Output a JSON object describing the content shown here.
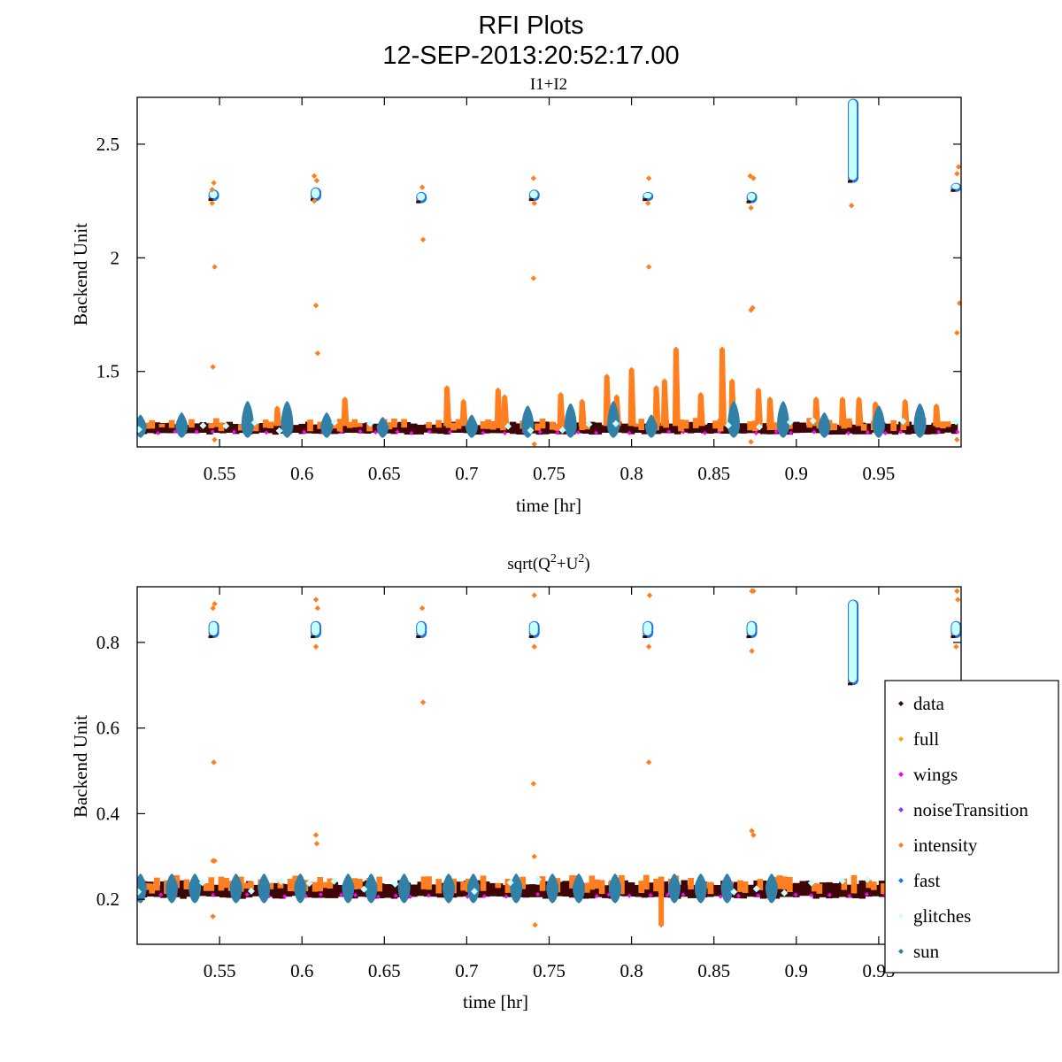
{
  "figure": {
    "title": "RFI Plots",
    "timestamp": "12-SEP-2013:20:52:17.00"
  },
  "legend": {
    "placement": "lower-right",
    "entries": [
      {
        "name": "data",
        "color": "#3d0505"
      },
      {
        "name": "full",
        "color": "#ffa31a"
      },
      {
        "name": "wings",
        "color": "#ff00ff"
      },
      {
        "name": "noiseTransition",
        "color": "#7f3fdf"
      },
      {
        "name": "intensity",
        "color": "#ff7f20"
      },
      {
        "name": "fast",
        "color": "#1f78d8"
      },
      {
        "name": "glitches",
        "color": "#c8ffff"
      },
      {
        "name": "sun",
        "color": "#3180a8"
      }
    ]
  },
  "chart_data": [
    {
      "type": "scatter",
      "title": "I1+I2",
      "xlabel": "time [hr]",
      "ylabel": "Backend Unit",
      "xlim": [
        0.5,
        1.0
      ],
      "ylim": [
        1.168,
        2.706
      ],
      "xticks": [
        0.55,
        0.6,
        0.65,
        0.7,
        0.75,
        0.8,
        0.85,
        0.9,
        0.95
      ],
      "xtick_labels": [
        "0.55",
        "0.6",
        "0.65",
        "0.7",
        "0.75",
        "0.8",
        "0.85",
        "0.9",
        "0.95"
      ],
      "yticks": [
        1.5,
        2,
        2.5
      ],
      "ytick_labels": [
        "1.5",
        "2",
        "2.5"
      ],
      "grid": false,
      "baseline": {
        "low": 1.22,
        "high": 1.3
      },
      "calibration_clusters": [
        {
          "t": 0.5465,
          "y_low": 2.25,
          "y_high": 2.3
        },
        {
          "t": 0.6085,
          "y_low": 2.25,
          "y_high": 2.31
        },
        {
          "t": 0.6725,
          "y_low": 2.24,
          "y_high": 2.29
        },
        {
          "t": 0.741,
          "y_low": 2.25,
          "y_high": 2.3
        },
        {
          "t": 0.81,
          "y_low": 2.25,
          "y_high": 2.29
        },
        {
          "t": 0.873,
          "y_low": 2.24,
          "y_high": 2.29
        },
        {
          "t": 0.9345,
          "y_low": 2.33,
          "y_high": 2.7
        },
        {
          "t": 0.997,
          "y_low": 2.29,
          "y_high": 2.33
        }
      ],
      "intensity_outliers": [
        {
          "t": 0.5465,
          "y": 2.33
        },
        {
          "t": 0.5455,
          "y": 2.3
        },
        {
          "t": 0.5455,
          "y": 2.24
        },
        {
          "t": 0.547,
          "y": 1.96
        },
        {
          "t": 0.546,
          "y": 1.52
        },
        {
          "t": 0.547,
          "y": 1.2
        },
        {
          "t": 0.6075,
          "y": 2.36
        },
        {
          "t": 0.609,
          "y": 2.34
        },
        {
          "t": 0.6075,
          "y": 2.25
        },
        {
          "t": 0.6085,
          "y": 1.79
        },
        {
          "t": 0.6095,
          "y": 1.58
        },
        {
          "t": 0.673,
          "y": 2.31
        },
        {
          "t": 0.6735,
          "y": 2.08
        },
        {
          "t": 0.7405,
          "y": 2.35
        },
        {
          "t": 0.741,
          "y": 2.24
        },
        {
          "t": 0.7405,
          "y": 1.91
        },
        {
          "t": 0.741,
          "y": 1.18
        },
        {
          "t": 0.8105,
          "y": 2.35
        },
        {
          "t": 0.81,
          "y": 2.24
        },
        {
          "t": 0.8105,
          "y": 1.96
        },
        {
          "t": 0.872,
          "y": 2.36
        },
        {
          "t": 0.874,
          "y": 2.35
        },
        {
          "t": 0.8725,
          "y": 2.22
        },
        {
          "t": 0.8735,
          "y": 1.78
        },
        {
          "t": 0.8725,
          "y": 1.77
        },
        {
          "t": 0.8725,
          "y": 1.19
        },
        {
          "t": 0.9335,
          "y": 2.23
        },
        {
          "t": 0.9975,
          "y": 2.37
        },
        {
          "t": 0.9985,
          "y": 2.4
        },
        {
          "t": 0.999,
          "y": 1.8
        },
        {
          "t": 0.9975,
          "y": 1.67
        },
        {
          "t": 0.9975,
          "y": 1.2
        }
      ],
      "intensity_spikes": [
        {
          "t": 0.585,
          "y": 1.35
        },
        {
          "t": 0.626,
          "y": 1.39
        },
        {
          "t": 0.688,
          "y": 1.44
        },
        {
          "t": 0.698,
          "y": 1.38
        },
        {
          "t": 0.719,
          "y": 1.43
        },
        {
          "t": 0.723,
          "y": 1.4
        },
        {
          "t": 0.757,
          "y": 1.41
        },
        {
          "t": 0.77,
          "y": 1.38
        },
        {
          "t": 0.785,
          "y": 1.49
        },
        {
          "t": 0.791,
          "y": 1.4
        },
        {
          "t": 0.8,
          "y": 1.52
        },
        {
          "t": 0.815,
          "y": 1.44
        },
        {
          "t": 0.82,
          "y": 1.47
        },
        {
          "t": 0.827,
          "y": 1.61
        },
        {
          "t": 0.842,
          "y": 1.41
        },
        {
          "t": 0.855,
          "y": 1.61
        },
        {
          "t": 0.861,
          "y": 1.47
        },
        {
          "t": 0.877,
          "y": 1.43
        },
        {
          "t": 0.884,
          "y": 1.39
        },
        {
          "t": 0.912,
          "y": 1.39
        },
        {
          "t": 0.928,
          "y": 1.39
        },
        {
          "t": 0.938,
          "y": 1.39
        },
        {
          "t": 0.948,
          "y": 1.37
        },
        {
          "t": 0.966,
          "y": 1.38
        },
        {
          "t": 0.985,
          "y": 1.36
        }
      ],
      "sun_bumps": [
        {
          "t": 0.502,
          "y": 1.31
        },
        {
          "t": 0.527,
          "y": 1.32
        },
        {
          "t": 0.567,
          "y": 1.37
        },
        {
          "t": 0.591,
          "y": 1.37
        },
        {
          "t": 0.615,
          "y": 1.32
        },
        {
          "t": 0.649,
          "y": 1.3
        },
        {
          "t": 0.703,
          "y": 1.31
        },
        {
          "t": 0.737,
          "y": 1.35
        },
        {
          "t": 0.763,
          "y": 1.36
        },
        {
          "t": 0.789,
          "y": 1.37
        },
        {
          "t": 0.812,
          "y": 1.31
        },
        {
          "t": 0.862,
          "y": 1.37
        },
        {
          "t": 0.892,
          "y": 1.37
        },
        {
          "t": 0.917,
          "y": 1.32
        },
        {
          "t": 0.95,
          "y": 1.35
        },
        {
          "t": 0.975,
          "y": 1.36
        }
      ]
    },
    {
      "type": "scatter",
      "title": "sqrt(Q^2+U^2)",
      "title_base": "sqrt(Q",
      "title_sup1": "2",
      "title_mid": "+U",
      "title_sup2": "2",
      "title_end": ")",
      "xlabel": "time [hr]",
      "ylabel": "Backend Unit",
      "xlim": [
        0.5,
        1.0
      ],
      "ylim": [
        0.095,
        0.93
      ],
      "xticks": [
        0.55,
        0.6,
        0.65,
        0.7,
        0.75,
        0.8,
        0.85,
        0.9,
        0.95
      ],
      "xtick_labels": [
        "0.55",
        "0.6",
        "0.65",
        "0.7",
        "0.75",
        "0.8",
        "0.85",
        "0.9",
        "0.95"
      ],
      "yticks": [
        0.2,
        0.4,
        0.6,
        0.8
      ],
      "ytick_labels": [
        "0.2",
        "0.4",
        "0.6",
        "0.8"
      ],
      "grid": false,
      "baseline": {
        "low": 0.2,
        "high": 0.26
      },
      "calibration_clusters": [
        {
          "t": 0.5465,
          "y_low": 0.81,
          "y_high": 0.85
        },
        {
          "t": 0.6085,
          "y_low": 0.81,
          "y_high": 0.85
        },
        {
          "t": 0.6725,
          "y_low": 0.81,
          "y_high": 0.85
        },
        {
          "t": 0.741,
          "y_low": 0.81,
          "y_high": 0.85
        },
        {
          "t": 0.81,
          "y_low": 0.81,
          "y_high": 0.85
        },
        {
          "t": 0.873,
          "y_low": 0.81,
          "y_high": 0.85
        },
        {
          "t": 0.9345,
          "y_low": 0.7,
          "y_high": 0.9
        },
        {
          "t": 0.997,
          "y_low": 0.81,
          "y_high": 0.85
        }
      ],
      "intensity_outliers": [
        {
          "t": 0.546,
          "y": 0.88
        },
        {
          "t": 0.547,
          "y": 0.89
        },
        {
          "t": 0.5465,
          "y": 0.52
        },
        {
          "t": 0.546,
          "y": 0.29
        },
        {
          "t": 0.547,
          "y": 0.29
        },
        {
          "t": 0.546,
          "y": 0.16
        },
        {
          "t": 0.6085,
          "y": 0.9
        },
        {
          "t": 0.6095,
          "y": 0.88
        },
        {
          "t": 0.6085,
          "y": 0.79
        },
        {
          "t": 0.6085,
          "y": 0.35
        },
        {
          "t": 0.609,
          "y": 0.33
        },
        {
          "t": 0.673,
          "y": 0.88
        },
        {
          "t": 0.6735,
          "y": 0.66
        },
        {
          "t": 0.741,
          "y": 0.91
        },
        {
          "t": 0.741,
          "y": 0.79
        },
        {
          "t": 0.7405,
          "y": 0.47
        },
        {
          "t": 0.741,
          "y": 0.3
        },
        {
          "t": 0.7415,
          "y": 0.14
        },
        {
          "t": 0.811,
          "y": 0.91
        },
        {
          "t": 0.8105,
          "y": 0.79
        },
        {
          "t": 0.8105,
          "y": 0.52
        },
        {
          "t": 0.873,
          "y": 0.92
        },
        {
          "t": 0.874,
          "y": 0.92
        },
        {
          "t": 0.873,
          "y": 0.78
        },
        {
          "t": 0.873,
          "y": 0.36
        },
        {
          "t": 0.874,
          "y": 0.35
        },
        {
          "t": 0.9975,
          "y": 0.92
        },
        {
          "t": 0.998,
          "y": 0.9
        },
        {
          "t": 0.997,
          "y": 0.79
        }
      ],
      "intensity_spikes": [
        {
          "t": 0.818,
          "y": 0.14
        }
      ],
      "sun_bumps": [
        {
          "t": 0.502,
          "y": 0.26
        },
        {
          "t": 0.521,
          "y": 0.26
        },
        {
          "t": 0.535,
          "y": 0.26
        },
        {
          "t": 0.56,
          "y": 0.26
        },
        {
          "t": 0.577,
          "y": 0.26
        },
        {
          "t": 0.599,
          "y": 0.26
        },
        {
          "t": 0.628,
          "y": 0.26
        },
        {
          "t": 0.642,
          "y": 0.26
        },
        {
          "t": 0.662,
          "y": 0.26
        },
        {
          "t": 0.689,
          "y": 0.26
        },
        {
          "t": 0.704,
          "y": 0.26
        },
        {
          "t": 0.73,
          "y": 0.26
        },
        {
          "t": 0.752,
          "y": 0.26
        },
        {
          "t": 0.768,
          "y": 0.26
        },
        {
          "t": 0.79,
          "y": 0.26
        },
        {
          "t": 0.826,
          "y": 0.26
        },
        {
          "t": 0.842,
          "y": 0.26
        },
        {
          "t": 0.858,
          "y": 0.26
        },
        {
          "t": 0.885,
          "y": 0.26
        }
      ]
    }
  ]
}
